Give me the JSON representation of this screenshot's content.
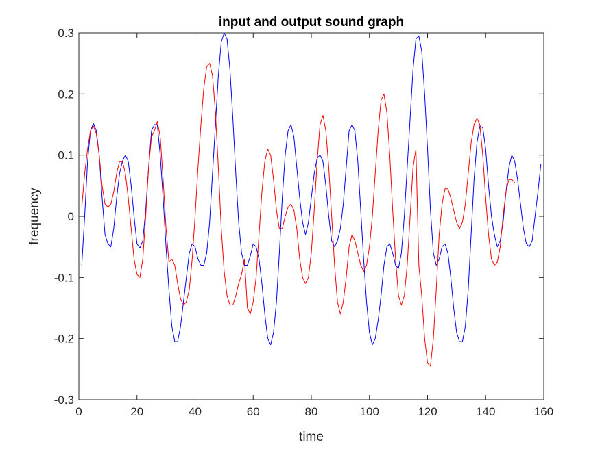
{
  "chart_data": {
    "type": "line",
    "title": "input and output sound graph",
    "xlabel": "time",
    "ylabel": "frequency",
    "xlim": [
      0,
      160
    ],
    "ylim": [
      -0.3,
      0.3
    ],
    "xticks": [
      0,
      20,
      40,
      60,
      80,
      100,
      120,
      140,
      160
    ],
    "yticks": [
      -0.3,
      -0.2,
      -0.1,
      0,
      0.1,
      0.2,
      0.3
    ],
    "xtick_labels": [
      "0",
      "20",
      "40",
      "60",
      "80",
      "100",
      "120",
      "140",
      "160"
    ],
    "ytick_labels": [
      "-0.3",
      "-0.2",
      "-0.1",
      "0",
      "0.1",
      "0.2",
      "0.3"
    ],
    "grid": false,
    "series": [
      {
        "color": "#0000ff",
        "points": [
          [
            1,
            -0.08
          ],
          [
            2,
            0.0
          ],
          [
            3,
            0.09
          ],
          [
            4,
            0.14
          ],
          [
            5,
            0.152
          ],
          [
            6,
            0.14
          ],
          [
            7,
            0.1
          ],
          [
            8,
            0.03
          ],
          [
            9,
            -0.03
          ],
          [
            10,
            -0.045
          ],
          [
            11,
            -0.05
          ],
          [
            12,
            -0.02
          ],
          [
            13,
            0.03
          ],
          [
            14,
            0.07
          ],
          [
            15,
            0.09
          ],
          [
            16,
            0.1
          ],
          [
            17,
            0.09
          ],
          [
            18,
            0.05
          ],
          [
            19,
            0.0
          ],
          [
            20,
            -0.045
          ],
          [
            21,
            -0.052
          ],
          [
            22,
            -0.04
          ],
          [
            23,
            0.01
          ],
          [
            24,
            0.08
          ],
          [
            25,
            0.14
          ],
          [
            26,
            0.15
          ],
          [
            27,
            0.15
          ],
          [
            28,
            0.1
          ],
          [
            29,
            0.03
          ],
          [
            30,
            -0.05
          ],
          [
            31,
            -0.12
          ],
          [
            32,
            -0.18
          ],
          [
            33,
            -0.205
          ],
          [
            34,
            -0.205
          ],
          [
            35,
            -0.18
          ],
          [
            36,
            -0.14
          ],
          [
            37,
            -0.1
          ],
          [
            38,
            -0.06
          ],
          [
            39,
            -0.045
          ],
          [
            40,
            -0.05
          ],
          [
            41,
            -0.07
          ],
          [
            42,
            -0.08
          ],
          [
            43,
            -0.08
          ],
          [
            44,
            -0.06
          ],
          [
            45,
            -0.01
          ],
          [
            46,
            0.07
          ],
          [
            47,
            0.15
          ],
          [
            48,
            0.23
          ],
          [
            49,
            0.285
          ],
          [
            50,
            0.3
          ],
          [
            51,
            0.29
          ],
          [
            52,
            0.24
          ],
          [
            53,
            0.16
          ],
          [
            54,
            0.07
          ],
          [
            55,
            -0.01
          ],
          [
            56,
            -0.06
          ],
          [
            57,
            -0.08
          ],
          [
            58,
            -0.08
          ],
          [
            59,
            -0.065
          ],
          [
            60,
            -0.045
          ],
          [
            61,
            -0.05
          ],
          [
            62,
            -0.07
          ],
          [
            63,
            -0.11
          ],
          [
            64,
            -0.16
          ],
          [
            65,
            -0.2
          ],
          [
            66,
            -0.21
          ],
          [
            67,
            -0.19
          ],
          [
            68,
            -0.14
          ],
          [
            69,
            -0.06
          ],
          [
            70,
            0.03
          ],
          [
            71,
            0.1
          ],
          [
            72,
            0.14
          ],
          [
            73,
            0.15
          ],
          [
            74,
            0.13
          ],
          [
            75,
            0.08
          ],
          [
            76,
            0.03
          ],
          [
            77,
            -0.01
          ],
          [
            78,
            -0.03
          ],
          [
            79,
            -0.01
          ],
          [
            80,
            0.03
          ],
          [
            81,
            0.07
          ],
          [
            82,
            0.095
          ],
          [
            83,
            0.1
          ],
          [
            84,
            0.09
          ],
          [
            85,
            0.05
          ],
          [
            86,
            0.0
          ],
          [
            87,
            -0.04
          ],
          [
            88,
            -0.05
          ],
          [
            89,
            -0.04
          ],
          [
            90,
            -0.02
          ],
          [
            91,
            0.02
          ],
          [
            92,
            0.08
          ],
          [
            93,
            0.14
          ],
          [
            94,
            0.15
          ],
          [
            95,
            0.14
          ],
          [
            96,
            0.09
          ],
          [
            97,
            0.01
          ],
          [
            98,
            -0.07
          ],
          [
            99,
            -0.14
          ],
          [
            100,
            -0.19
          ],
          [
            101,
            -0.21
          ],
          [
            102,
            -0.2
          ],
          [
            103,
            -0.17
          ],
          [
            104,
            -0.13
          ],
          [
            105,
            -0.08
          ],
          [
            106,
            -0.05
          ],
          [
            107,
            -0.045
          ],
          [
            108,
            -0.06
          ],
          [
            109,
            -0.08
          ],
          [
            110,
            -0.085
          ],
          [
            111,
            -0.06
          ],
          [
            112,
            0.0
          ],
          [
            113,
            0.08
          ],
          [
            114,
            0.16
          ],
          [
            115,
            0.24
          ],
          [
            116,
            0.29
          ],
          [
            117,
            0.295
          ],
          [
            118,
            0.27
          ],
          [
            119,
            0.2
          ],
          [
            120,
            0.11
          ],
          [
            121,
            0.01
          ],
          [
            122,
            -0.06
          ],
          [
            123,
            -0.08
          ],
          [
            124,
            -0.07
          ],
          [
            125,
            -0.05
          ],
          [
            126,
            -0.045
          ],
          [
            127,
            -0.06
          ],
          [
            128,
            -0.1
          ],
          [
            129,
            -0.15
          ],
          [
            130,
            -0.19
          ],
          [
            131,
            -0.205
          ],
          [
            132,
            -0.205
          ],
          [
            133,
            -0.18
          ],
          [
            134,
            -0.12
          ],
          [
            135,
            -0.03
          ],
          [
            136,
            0.06
          ],
          [
            137,
            0.12
          ],
          [
            138,
            0.148
          ],
          [
            139,
            0.145
          ],
          [
            140,
            0.11
          ],
          [
            141,
            0.05
          ],
          [
            142,
            0.0
          ],
          [
            143,
            -0.03
          ],
          [
            144,
            -0.05
          ],
          [
            145,
            -0.04
          ],
          [
            146,
            -0.01
          ],
          [
            147,
            0.04
          ],
          [
            148,
            0.08
          ],
          [
            149,
            0.1
          ],
          [
            150,
            0.09
          ],
          [
            151,
            0.06
          ],
          [
            152,
            0.02
          ],
          [
            153,
            -0.02
          ],
          [
            154,
            -0.045
          ],
          [
            155,
            -0.05
          ],
          [
            156,
            -0.04
          ],
          [
            157,
            0.0
          ],
          [
            158,
            0.04
          ],
          [
            159,
            0.085
          ]
        ]
      },
      {
        "color": "#ff0000",
        "points": [
          [
            1,
            0.015
          ],
          [
            2,
            0.07
          ],
          [
            3,
            0.11
          ],
          [
            4,
            0.14
          ],
          [
            5,
            0.148
          ],
          [
            6,
            0.135
          ],
          [
            7,
            0.1
          ],
          [
            8,
            0.05
          ],
          [
            9,
            0.02
          ],
          [
            10,
            0.015
          ],
          [
            11,
            0.02
          ],
          [
            12,
            0.04
          ],
          [
            13,
            0.07
          ],
          [
            14,
            0.09
          ],
          [
            15,
            0.09
          ],
          [
            16,
            0.07
          ],
          [
            17,
            0.03
          ],
          [
            18,
            -0.02
          ],
          [
            19,
            -0.07
          ],
          [
            20,
            -0.095
          ],
          [
            21,
            -0.1
          ],
          [
            22,
            -0.07
          ],
          [
            23,
            0.0
          ],
          [
            24,
            0.08
          ],
          [
            25,
            0.13
          ],
          [
            26,
            0.14
          ],
          [
            27,
            0.155
          ],
          [
            28,
            0.13
          ],
          [
            29,
            0.06
          ],
          [
            30,
            -0.02
          ],
          [
            31,
            -0.075
          ],
          [
            32,
            -0.07
          ],
          [
            33,
            -0.08
          ],
          [
            34,
            -0.11
          ],
          [
            35,
            -0.135
          ],
          [
            36,
            -0.145
          ],
          [
            37,
            -0.14
          ],
          [
            38,
            -0.12
          ],
          [
            39,
            -0.07
          ],
          [
            40,
            0.0
          ],
          [
            41,
            0.08
          ],
          [
            42,
            0.15
          ],
          [
            43,
            0.21
          ],
          [
            44,
            0.245
          ],
          [
            45,
            0.25
          ],
          [
            46,
            0.23
          ],
          [
            47,
            0.17
          ],
          [
            48,
            0.08
          ],
          [
            49,
            -0.02
          ],
          [
            50,
            -0.09
          ],
          [
            51,
            -0.13
          ],
          [
            52,
            -0.145
          ],
          [
            53,
            -0.145
          ],
          [
            54,
            -0.13
          ],
          [
            55,
            -0.11
          ],
          [
            56,
            -0.095
          ],
          [
            57,
            -0.07
          ],
          [
            58,
            -0.15
          ],
          [
            59,
            -0.16
          ],
          [
            60,
            -0.14
          ],
          [
            61,
            -0.1
          ],
          [
            62,
            -0.03
          ],
          [
            63,
            0.04
          ],
          [
            64,
            0.09
          ],
          [
            65,
            0.11
          ],
          [
            66,
            0.1
          ],
          [
            67,
            0.06
          ],
          [
            68,
            0.01
          ],
          [
            69,
            -0.02
          ],
          [
            70,
            -0.02
          ],
          [
            71,
            0.0
          ],
          [
            72,
            0.015
          ],
          [
            73,
            0.02
          ],
          [
            74,
            0.01
          ],
          [
            75,
            -0.02
          ],
          [
            76,
            -0.07
          ],
          [
            77,
            -0.1
          ],
          [
            78,
            -0.11
          ],
          [
            79,
            -0.1
          ],
          [
            80,
            -0.06
          ],
          [
            81,
            0.01
          ],
          [
            82,
            0.09
          ],
          [
            83,
            0.15
          ],
          [
            84,
            0.165
          ],
          [
            85,
            0.14
          ],
          [
            86,
            0.08
          ],
          [
            87,
            0.0
          ],
          [
            88,
            -0.08
          ],
          [
            89,
            -0.14
          ],
          [
            90,
            -0.16
          ],
          [
            91,
            -0.14
          ],
          [
            92,
            -0.1
          ],
          [
            93,
            -0.05
          ],
          [
            94,
            -0.03
          ],
          [
            95,
            -0.04
          ],
          [
            96,
            -0.06
          ],
          [
            97,
            -0.08
          ],
          [
            98,
            -0.09
          ],
          [
            99,
            -0.08
          ],
          [
            100,
            -0.05
          ],
          [
            101,
            0.0
          ],
          [
            102,
            0.07
          ],
          [
            103,
            0.14
          ],
          [
            104,
            0.19
          ],
          [
            105,
            0.2
          ],
          [
            106,
            0.17
          ],
          [
            107,
            0.1
          ],
          [
            108,
            0.01
          ],
          [
            109,
            -0.07
          ],
          [
            110,
            -0.13
          ],
          [
            111,
            -0.145
          ],
          [
            112,
            -0.13
          ],
          [
            113,
            -0.08
          ],
          [
            114,
            0.0
          ],
          [
            115,
            0.08
          ],
          [
            116,
            0.11
          ],
          [
            117,
            -0.08
          ],
          [
            118,
            -0.13
          ],
          [
            119,
            -0.2
          ],
          [
            120,
            -0.24
          ],
          [
            121,
            -0.245
          ],
          [
            122,
            -0.2
          ],
          [
            123,
            -0.12
          ],
          [
            124,
            -0.03
          ],
          [
            125,
            0.02
          ],
          [
            126,
            0.045
          ],
          [
            127,
            0.045
          ],
          [
            128,
            0.03
          ],
          [
            129,
            0.01
          ],
          [
            130,
            -0.01
          ],
          [
            131,
            -0.02
          ],
          [
            132,
            -0.01
          ],
          [
            133,
            0.02
          ],
          [
            134,
            0.07
          ],
          [
            135,
            0.12
          ],
          [
            136,
            0.15
          ],
          [
            137,
            0.16
          ],
          [
            138,
            0.15
          ],
          [
            139,
            0.1
          ],
          [
            140,
            0.03
          ],
          [
            141,
            -0.03
          ],
          [
            142,
            -0.07
          ],
          [
            143,
            -0.08
          ],
          [
            144,
            -0.075
          ],
          [
            145,
            -0.05
          ],
          [
            146,
            0.0
          ],
          [
            147,
            0.04
          ],
          [
            148,
            0.06
          ],
          [
            149,
            0.06
          ],
          [
            150,
            0.055
          ]
        ]
      }
    ]
  }
}
